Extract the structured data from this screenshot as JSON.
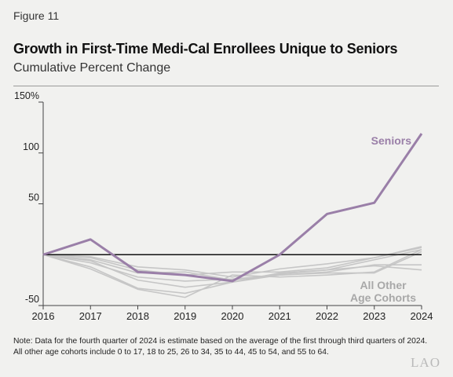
{
  "figure_label": "Figure 11",
  "title": "Growth in First-Time Medi-Cal Enrollees Unique to Seniors",
  "subtitle": "Cumulative Percent Change",
  "note_lines": [
    "Note: Data for the fourth quarter of 2024 is estimate based on the average of the first through third quarters of 2024.",
    "All other age cohorts include 0 to 17, 18 to 25, 26 to 34, 35 to 44, 45 to 54, and 55 to 64."
  ],
  "logo": "LAO",
  "colors": {
    "seniors": "#9a7fa8",
    "others": "#c6c6c6",
    "zero_line": "#111111",
    "text": "#222222"
  },
  "chart_data": {
    "type": "line",
    "title": "Growth in First-Time Medi-Cal Enrollees Unique to Seniors",
    "subtitle": "Cumulative Percent Change",
    "x": [
      2016,
      2017,
      2018,
      2019,
      2020,
      2021,
      2022,
      2023,
      2024
    ],
    "y_ticks": [
      -50,
      50,
      100,
      150
    ],
    "y_tick_labels": [
      "-50",
      "50",
      "100",
      "150%"
    ],
    "ylim": [
      -50,
      150
    ],
    "grid": false,
    "series": [
      {
        "name": "Seniors",
        "label": "Seniors",
        "highlight": true,
        "values": [
          0,
          15,
          -17,
          -20,
          -26,
          0,
          40,
          51,
          119
        ]
      },
      {
        "values": [
          0,
          -2,
          -12,
          -15,
          -22,
          -14,
          -9,
          -3,
          7
        ]
      },
      {
        "values": [
          0,
          -5,
          -18,
          -17,
          -25,
          -19,
          -15,
          -5,
          5
        ]
      },
      {
        "values": [
          0,
          -8,
          -22,
          -26,
          -24,
          -20,
          -17,
          -10,
          -10
        ]
      },
      {
        "values": [
          0,
          -3,
          -15,
          -20,
          -17,
          -17,
          -13,
          -3,
          8
        ]
      },
      {
        "values": [
          0,
          -12,
          -33,
          -38,
          -27,
          -18,
          -15,
          -11,
          -15
        ]
      },
      {
        "values": [
          0,
          -14,
          -34,
          -42,
          -20,
          -22,
          -20,
          -17,
          5
        ]
      },
      {
        "values": [
          0,
          -6,
          -25,
          -32,
          -27,
          -20,
          -18,
          -18,
          3
        ]
      }
    ],
    "annotations": [
      {
        "text": "Seniors",
        "series": "Seniors"
      },
      {
        "text_lines": [
          "All Other",
          "Age Cohorts"
        ]
      }
    ]
  }
}
